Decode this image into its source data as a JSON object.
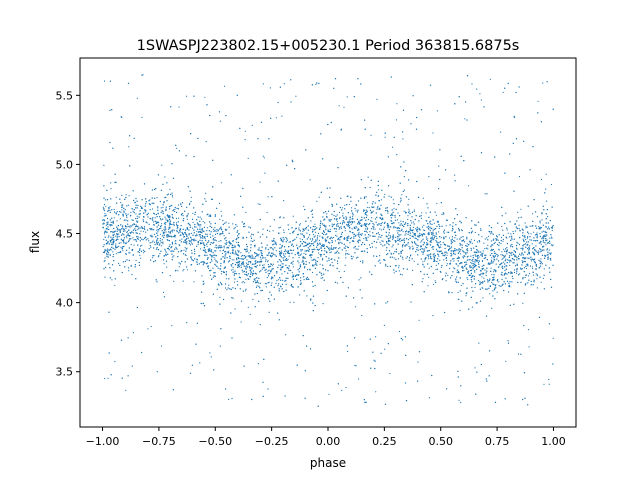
{
  "chart_data": {
    "type": "scatter",
    "title": "1SWASPJ223802.15+005230.1 Period 363815.6875s",
    "xlabel": "phase",
    "ylabel": "flux",
    "xlim": [
      -1.1,
      1.1
    ],
    "ylim": [
      3.1,
      5.77
    ],
    "xticks": [
      -1.0,
      -0.75,
      -0.5,
      -0.25,
      0.0,
      0.25,
      0.5,
      0.75,
      1.0
    ],
    "xtick_labels": [
      "−1.00",
      "−0.75",
      "−0.50",
      "−0.25",
      "0.00",
      "0.25",
      "0.50",
      "0.75",
      "1.00"
    ],
    "yticks": [
      3.5,
      4.0,
      4.5,
      5.0,
      5.5
    ],
    "ytick_labels": [
      "3.5",
      "4.0",
      "4.5",
      "5.0",
      "5.5"
    ],
    "grid": false,
    "marker_color": "#1f77b4",
    "binned_trend": {
      "phase": [
        -1.0,
        -0.9,
        -0.8,
        -0.7,
        -0.6,
        -0.5,
        -0.4,
        -0.3,
        -0.2,
        -0.1,
        0.0,
        0.1,
        0.2,
        0.3,
        0.4,
        0.5,
        0.6,
        0.7,
        0.8,
        0.9,
        1.0
      ],
      "flux": [
        4.48,
        4.52,
        4.55,
        4.53,
        4.47,
        4.4,
        4.33,
        4.28,
        4.32,
        4.37,
        4.45,
        4.52,
        4.55,
        4.53,
        4.47,
        4.4,
        4.33,
        4.28,
        4.32,
        4.37,
        4.45
      ]
    }
  }
}
